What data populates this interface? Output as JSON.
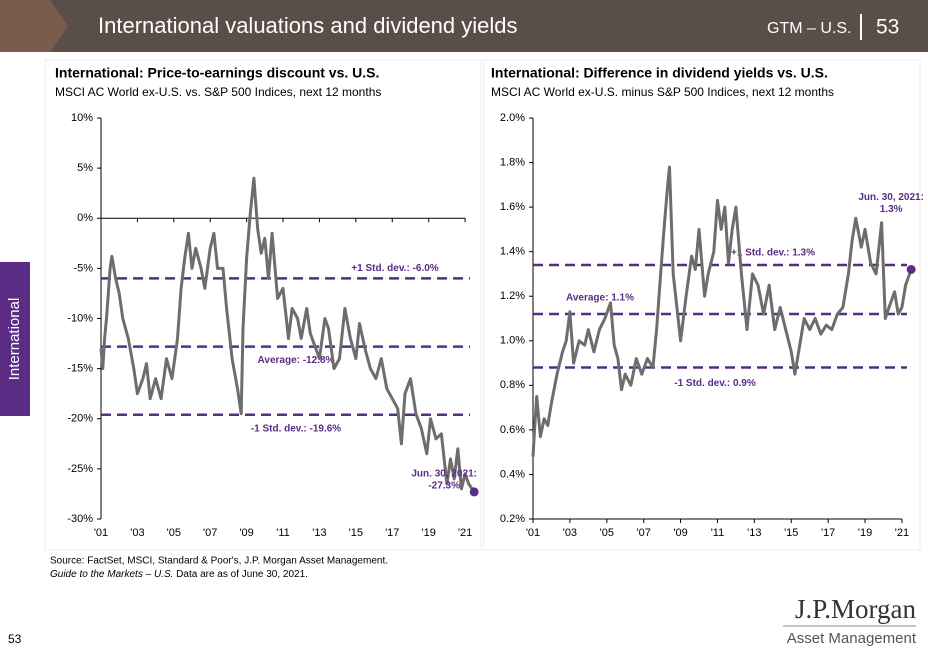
{
  "header": {
    "title": "International valuations and dividend yields",
    "section": "GTM – U.S.",
    "page": "53"
  },
  "sidebar": "International",
  "chart_data": [
    {
      "type": "line",
      "title": "International: Price-to-earnings discount vs. U.S.",
      "subtitle": "MSCI AC World ex-U.S. vs. S&P 500 Indices, next 12 months",
      "xlim": [
        2001,
        2021.6
      ],
      "ylim": [
        -30,
        10
      ],
      "baseline": 0,
      "xticks": [
        {
          "value": 2001,
          "label": "'01"
        },
        {
          "value": 2003,
          "label": "'03"
        },
        {
          "value": 2005,
          "label": "'05"
        },
        {
          "value": 2007,
          "label": "'07"
        },
        {
          "value": 2009,
          "label": "'09"
        },
        {
          "value": 2011,
          "label": "'11"
        },
        {
          "value": 2013,
          "label": "'13"
        },
        {
          "value": 2015,
          "label": "'15"
        },
        {
          "value": 2017,
          "label": "'17"
        },
        {
          "value": 2019,
          "label": "'19"
        },
        {
          "value": 2021,
          "label": "'21"
        }
      ],
      "yticks": [
        {
          "value": 10,
          "label": "10%"
        },
        {
          "value": 5,
          "label": "5%"
        },
        {
          "value": 0,
          "label": "0%"
        },
        {
          "value": -5,
          "label": "-5%"
        },
        {
          "value": -10,
          "label": "-10%"
        },
        {
          "value": -15,
          "label": "-15%"
        },
        {
          "value": -20,
          "label": "-20%"
        },
        {
          "value": -25,
          "label": "-25%"
        },
        {
          "value": -30,
          "label": "-30%"
        }
      ],
      "series": [
        {
          "color": "#6d6d6d",
          "x": [
            2001.0,
            2001.1,
            2001.2,
            2001.3,
            2001.5,
            2001.6,
            2001.8,
            2002.0,
            2002.2,
            2002.5,
            2002.8,
            2003.0,
            2003.3,
            2003.5,
            2003.7,
            2004.0,
            2004.3,
            2004.6,
            2004.9,
            2005.2,
            2005.4,
            2005.6,
            2005.8,
            2006.0,
            2006.2,
            2006.5,
            2006.7,
            2007.0,
            2007.2,
            2007.4,
            2007.7,
            2007.9,
            2008.2,
            2008.5,
            2008.7,
            2008.8,
            2009.0,
            2009.2,
            2009.4,
            2009.6,
            2009.8,
            2010.0,
            2010.2,
            2010.4,
            2010.7,
            2011.0,
            2011.3,
            2011.5,
            2011.8,
            2012.0,
            2012.3,
            2012.5,
            2012.8,
            2013.0,
            2013.3,
            2013.5,
            2013.8,
            2014.1,
            2014.4,
            2014.7,
            2015.0,
            2015.2,
            2015.5,
            2015.8,
            2016.1,
            2016.4,
            2016.7,
            2017.0,
            2017.3,
            2017.5,
            2017.7,
            2018.0,
            2018.3,
            2018.6,
            2018.9,
            2019.1,
            2019.4,
            2019.7,
            2020.0,
            2020.2,
            2020.4,
            2020.6,
            2020.8,
            2021.0,
            2021.2,
            2021.5
          ],
          "values": [
            -13,
            -15,
            -12,
            -10,
            -5,
            -3.8,
            -6,
            -7.5,
            -10,
            -12,
            -15,
            -17.5,
            -16,
            -14.5,
            -18,
            -16,
            -18,
            -14,
            -16,
            -12,
            -7,
            -4,
            -1.5,
            -5,
            -3,
            -5,
            -7,
            -3,
            -1.5,
            -5,
            -5,
            -9,
            -14,
            -17,
            -19.5,
            -11,
            -4,
            0.5,
            4,
            -1,
            -3.5,
            -2,
            -6,
            -1.5,
            -8,
            -7,
            -12,
            -9,
            -10,
            -12,
            -9,
            -11.5,
            -13,
            -14,
            -10,
            -11,
            -15,
            -14,
            -9,
            -12,
            -14,
            -10.5,
            -13,
            -15,
            -16,
            -14,
            -17,
            -18,
            -19,
            -22.5,
            -17.5,
            -16,
            -19.5,
            -21,
            -23.5,
            -20,
            -22,
            -21.5,
            -26.5,
            -24,
            -26,
            -23,
            -27,
            -25.5,
            -26.5,
            -27.3
          ]
        }
      ],
      "reference_lines": [
        {
          "label": "+1 Std. dev.: -6.0%",
          "value": -6.0
        },
        {
          "label": "Average: -12.8%",
          "value": -12.8
        },
        {
          "label": "-1 Std. dev.: -19.6%",
          "value": -19.6
        }
      ],
      "reference_color": "#5b2c83",
      "endpoint": {
        "label": [
          "Jun. 30, 2021:",
          "-27.3%"
        ],
        "x": 2021.5,
        "value": -27.3
      }
    },
    {
      "type": "line",
      "title": "International: Difference in dividend yields vs. U.S.",
      "subtitle": "MSCI AC World ex-U.S. minus S&P 500 Indices, next 12 months",
      "xlim": [
        2001,
        2021.6
      ],
      "ylim": [
        0.2,
        2.0
      ],
      "xticks": [
        {
          "value": 2001,
          "label": "'01"
        },
        {
          "value": 2003,
          "label": "'03"
        },
        {
          "value": 2005,
          "label": "'05"
        },
        {
          "value": 2007,
          "label": "'07"
        },
        {
          "value": 2009,
          "label": "'09"
        },
        {
          "value": 2011,
          "label": "'11"
        },
        {
          "value": 2013,
          "label": "'13"
        },
        {
          "value": 2015,
          "label": "'15"
        },
        {
          "value": 2017,
          "label": "'17"
        },
        {
          "value": 2019,
          "label": "'19"
        },
        {
          "value": 2021,
          "label": "'21"
        }
      ],
      "yticks": [
        {
          "value": 2.0,
          "label": "2.0%"
        },
        {
          "value": 1.8,
          "label": "1.8%"
        },
        {
          "value": 1.6,
          "label": "1.6%"
        },
        {
          "value": 1.4,
          "label": "1.4%"
        },
        {
          "value": 1.2,
          "label": "1.2%"
        },
        {
          "value": 1.0,
          "label": "1.0%"
        },
        {
          "value": 0.8,
          "label": "0.8%"
        },
        {
          "value": 0.6,
          "label": "0.6%"
        },
        {
          "value": 0.4,
          "label": "0.4%"
        },
        {
          "value": 0.2,
          "label": "0.2%"
        }
      ],
      "series": [
        {
          "color": "#6d6d6d",
          "x": [
            2001.0,
            2001.1,
            2001.2,
            2001.4,
            2001.6,
            2001.8,
            2002.0,
            2002.3,
            2002.6,
            2002.8,
            2003.0,
            2003.2,
            2003.5,
            2003.8,
            2004.0,
            2004.3,
            2004.6,
            2004.9,
            2005.2,
            2005.4,
            2005.6,
            2005.8,
            2006.0,
            2006.3,
            2006.6,
            2006.9,
            2007.2,
            2007.5,
            2007.7,
            2007.9,
            2008.1,
            2008.3,
            2008.4,
            2008.6,
            2008.8,
            2009.0,
            2009.3,
            2009.6,
            2009.8,
            2010.0,
            2010.3,
            2010.5,
            2010.8,
            2011.0,
            2011.2,
            2011.4,
            2011.6,
            2011.8,
            2012.0,
            2012.3,
            2012.6,
            2012.9,
            2013.2,
            2013.5,
            2013.8,
            2014.1,
            2014.4,
            2014.7,
            2015.0,
            2015.2,
            2015.4,
            2015.7,
            2016.0,
            2016.3,
            2016.6,
            2016.9,
            2017.2,
            2017.5,
            2017.8,
            2018.1,
            2018.3,
            2018.5,
            2018.8,
            2019.0,
            2019.3,
            2019.6,
            2019.9,
            2020.1,
            2020.3,
            2020.6,
            2020.8,
            2021.0,
            2021.2,
            2021.5
          ],
          "values": [
            0.48,
            0.62,
            0.75,
            0.57,
            0.65,
            0.62,
            0.72,
            0.85,
            0.95,
            1.0,
            1.13,
            0.9,
            1.0,
            0.98,
            1.05,
            0.95,
            1.05,
            1.1,
            1.17,
            0.98,
            0.92,
            0.78,
            0.85,
            0.8,
            0.92,
            0.85,
            0.92,
            0.88,
            1.05,
            1.28,
            1.5,
            1.7,
            1.78,
            1.3,
            1.15,
            1.0,
            1.2,
            1.38,
            1.32,
            1.5,
            1.2,
            1.3,
            1.4,
            1.63,
            1.5,
            1.6,
            1.35,
            1.5,
            1.6,
            1.3,
            1.05,
            1.3,
            1.25,
            1.12,
            1.25,
            1.05,
            1.15,
            1.05,
            0.95,
            0.85,
            0.95,
            1.1,
            1.05,
            1.1,
            1.03,
            1.07,
            1.05,
            1.12,
            1.15,
            1.3,
            1.45,
            1.55,
            1.42,
            1.5,
            1.35,
            1.3,
            1.53,
            1.1,
            1.15,
            1.22,
            1.12,
            1.15,
            1.25,
            1.32
          ]
        }
      ],
      "reference_lines": [
        {
          "label": "+1 Std. dev.: 1.3%",
          "value": 1.34
        },
        {
          "label": "Average: 1.1%",
          "value": 1.12
        },
        {
          "label": "-1 Std. dev.: 0.9%",
          "value": 0.88
        }
      ],
      "reference_color": "#5b2c83",
      "endpoint": {
        "label": [
          "Jun. 30, 2021:",
          "1.3%"
        ],
        "x": 2021.5,
        "value": 1.32
      }
    }
  ],
  "footnotes": {
    "source": "Source: FactSet, MSCI, Standard & Poor's, J.P. Morgan Asset Management.",
    "guide": "Guide to the Markets – U.S.",
    "note": " Data are as of June 30, 2021."
  },
  "page_number": "53",
  "logo": {
    "brand": "J.P.Morgan",
    "sub": "Asset Management"
  }
}
